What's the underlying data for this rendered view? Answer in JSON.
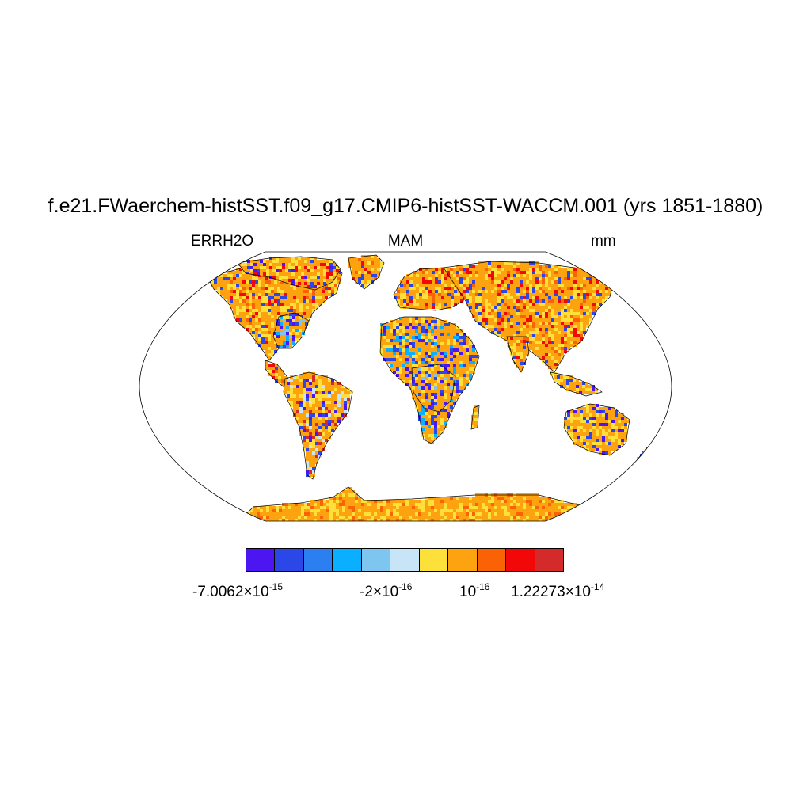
{
  "title": "f.e21.FWaerchem-histSST.f09_g17.CMIP6-histSST-WACCM.001 (yrs 1851-1880)",
  "left_label": "ERRH2O",
  "center_label": "MAM",
  "right_label": "mm",
  "colorbar": {
    "colors": [
      "#4b16f2",
      "#2c47e8",
      "#2c7ff0",
      "#0aafff",
      "#7ec6f0",
      "#c8e4f7",
      "#fde03a",
      "#fca30f",
      "#fa6205",
      "#f20808",
      "#d42a2a"
    ],
    "labels": [
      {
        "mantissa": "-7.0062",
        "times": "×10",
        "exp": "-15"
      },
      {
        "mantissa": "-2",
        "times": "×10",
        "exp": "-16"
      },
      {
        "mantissa": "",
        "times": "10",
        "exp": "-16"
      },
      {
        "mantissa": "1.22273",
        "times": "×10",
        "exp": "-14"
      }
    ]
  },
  "map": {
    "projection": "robinson",
    "background": "#ffffff",
    "land_dominant_color": "#fca30f",
    "regions": [
      {
        "name": "north-america-west",
        "colors": [
          "#fde03a",
          "#fca30f",
          "#fa6205",
          "#2c47e8",
          "#f20808"
        ]
      },
      {
        "name": "eastern-us",
        "colors": [
          "#2c47e8",
          "#0aafff",
          "#4b16f2",
          "#7ec6f0"
        ]
      },
      {
        "name": "canada-arctic",
        "colors": [
          "#f20808",
          "#4b16f2",
          "#fca30f",
          "#2c47e8",
          "#fde03a"
        ]
      },
      {
        "name": "amazon",
        "colors": [
          "#d42a2a",
          "#4b16f2",
          "#2c47e8",
          "#fca30f",
          "#c8e4f7"
        ]
      },
      {
        "name": "sahel",
        "colors": [
          "#2c47e8",
          "#4b16f2",
          "#0aafff",
          "#fca30f"
        ]
      },
      {
        "name": "central-africa",
        "colors": [
          "#4b16f2",
          "#2c47e8",
          "#fca30f",
          "#7ec6f0"
        ]
      },
      {
        "name": "eurasia-north",
        "colors": [
          "#fca30f",
          "#fa6205",
          "#2c47e8",
          "#f20808",
          "#fde03a"
        ]
      },
      {
        "name": "australia",
        "colors": [
          "#4b16f2",
          "#2c47e8",
          "#fca30f",
          "#fde03a"
        ]
      },
      {
        "name": "antarctica",
        "colors": [
          "#fca30f",
          "#fde03a",
          "#fa6205"
        ]
      }
    ]
  }
}
